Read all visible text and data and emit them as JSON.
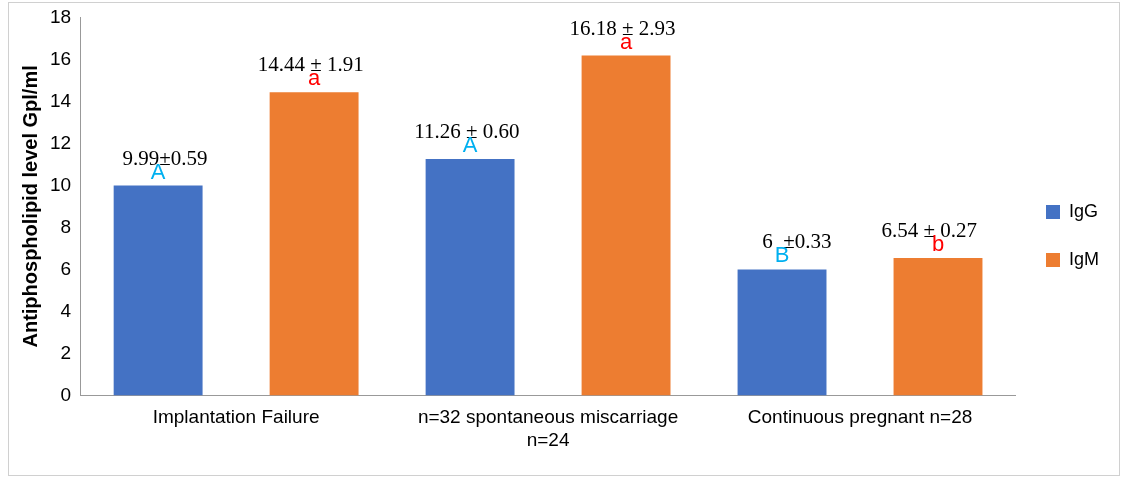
{
  "chart_data": {
    "type": "bar",
    "ylabel": "Antiphospholipid level Gpl/ml",
    "categories": [
      "Implantation Failure",
      "n=32 spontaneous miscarriage n=24",
      "Continuous pregnant n=28"
    ],
    "series": [
      {
        "name": "IgG",
        "color": "#4472c4",
        "values": [
          9.99,
          11.26,
          6
        ],
        "value_labels": [
          "9.99±0.59",
          "11.26 ± 0.60",
          "6  ±0.33"
        ]
      },
      {
        "name": "IgM",
        "color": "#ed7d31",
        "values": [
          14.44,
          16.18,
          6.54
        ],
        "value_labels": [
          "14.44 ± 1.91",
          "16.18 ± 2.93",
          "6.54 ± 0.27"
        ]
      }
    ],
    "annotations": [
      "A",
      "A",
      "B",
      "a",
      "a",
      "b"
    ],
    "ylim": [
      0,
      18
    ],
    "yticks": [
      0,
      2,
      4,
      6,
      8,
      10,
      12,
      14,
      16,
      18
    ],
    "grid": false,
    "legend": "right"
  }
}
